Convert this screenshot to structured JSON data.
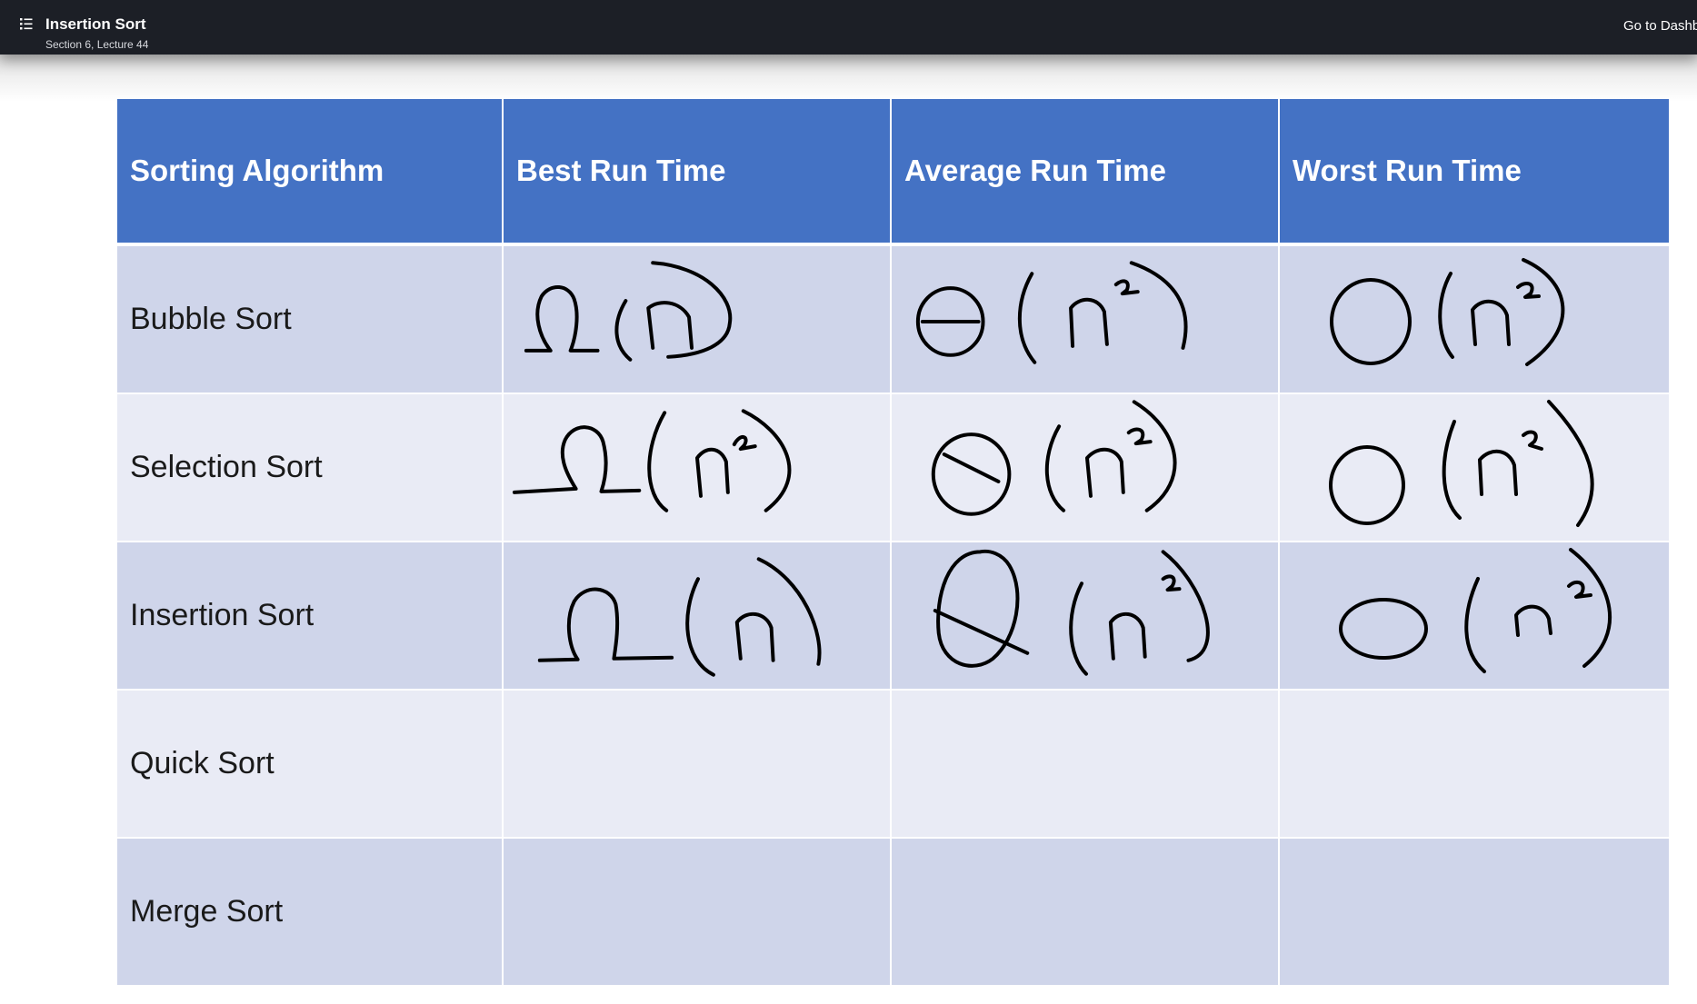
{
  "header": {
    "title": "Insertion Sort",
    "subtitle": "Section 6, Lecture 44",
    "dashboard_link": "Go to Dashb"
  },
  "table": {
    "columns": [
      "Sorting Algorithm",
      "Best Run Time",
      "Average Run Time",
      "Worst Run Time"
    ],
    "rows": [
      {
        "label": "Bubble Sort",
        "best": "Ω(n)",
        "average": "Θ(n²)",
        "worst": "O(n²)"
      },
      {
        "label": "Selection Sort",
        "best": "Ω(n²)",
        "average": "Θ(n²)",
        "worst": "O(n²)"
      },
      {
        "label": "Insertion Sort",
        "best": "Ω(n)",
        "average": "Θ(n²)",
        "worst": "O(n²)"
      },
      {
        "label": "Quick Sort",
        "best": "",
        "average": "",
        "worst": ""
      },
      {
        "label": "Merge Sort",
        "best": "",
        "average": "",
        "worst": ""
      }
    ]
  },
  "colors": {
    "topbar": "#1c1f26",
    "header_fill": "#4472c4",
    "row_dark": "#cfd5ea",
    "row_light": "#e9ebf5"
  },
  "icons": {
    "menu": "list-menu-icon"
  }
}
